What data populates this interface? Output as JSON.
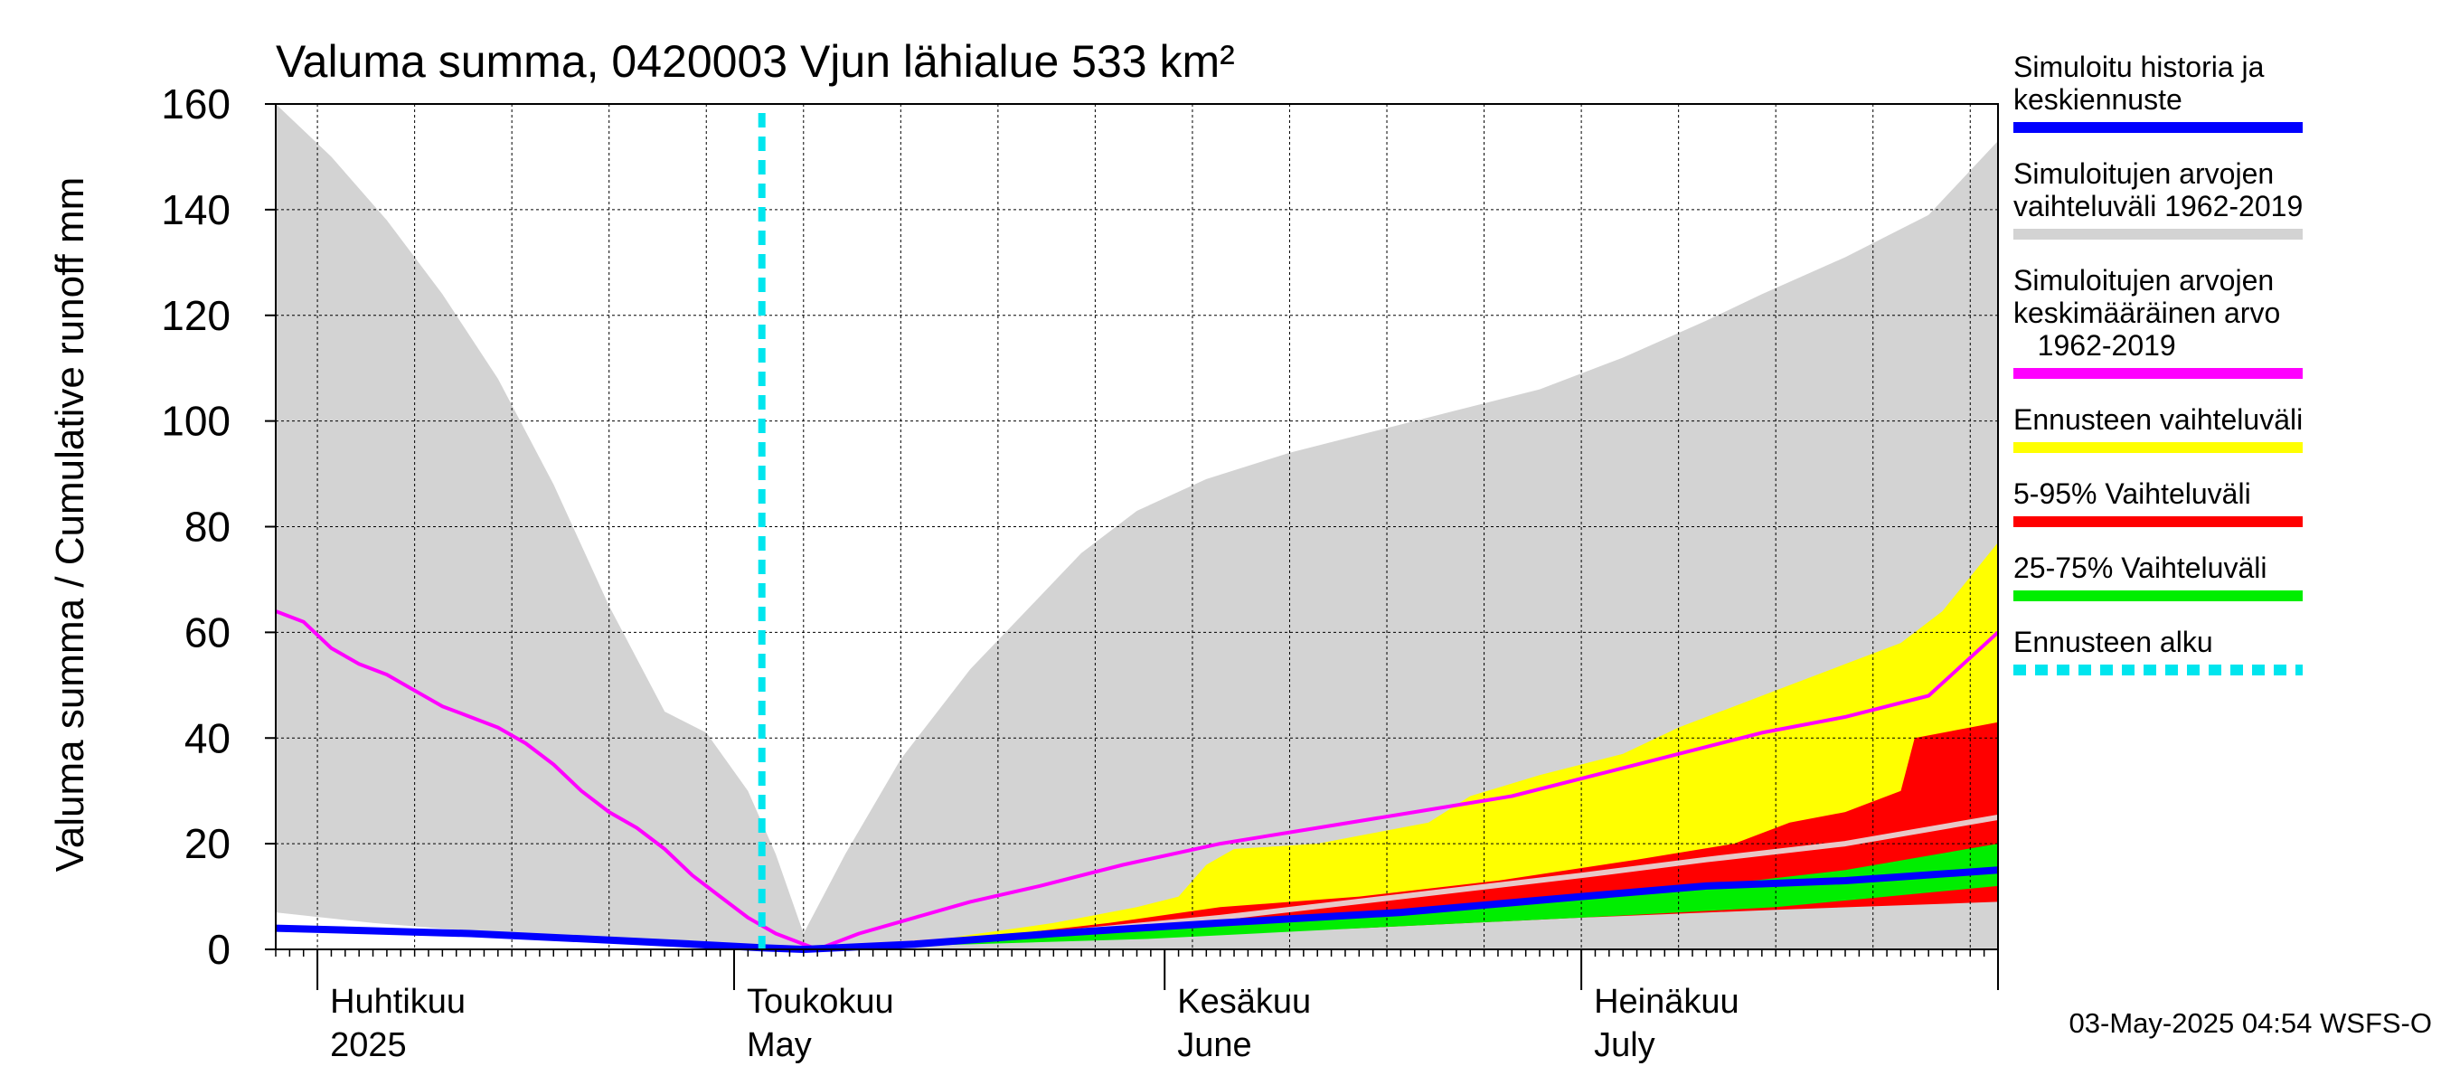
{
  "chart_data": {
    "type": "area",
    "title": "Valuma summa, 0420003 Vjun lähialue 533 km²",
    "ylabel": "Valuma summa / Cumulative runoff    mm",
    "ylim": [
      0,
      160
    ],
    "yticks": [
      0,
      20,
      40,
      60,
      80,
      100,
      120,
      140,
      160
    ],
    "x_range": [
      "2025-03-29",
      "2025-07-31"
    ],
    "month_labels": [
      {
        "fi": "Huhtikuu",
        "en": "2025",
        "date": "2025-04-01"
      },
      {
        "fi": "Toukokuu",
        "en": "May",
        "date": "2025-05-01"
      },
      {
        "fi": "Kesäkuu",
        "en": "June",
        "date": "2025-06-01"
      },
      {
        "fi": "Heinäkuu",
        "en": "July",
        "date": "2025-07-01"
      }
    ],
    "forecast_start": "2025-05-03",
    "grid": true,
    "legend_position": "right",
    "timestamp": "03-May-2025 04:54 WSFS-O",
    "legend": [
      {
        "key": "history",
        "label_lines": [
          "Simuloitu historia ja",
          "keskiennuste"
        ],
        "color": "#0000ff",
        "style": "line"
      },
      {
        "key": "range",
        "label_lines": [
          "Simuloitujen arvojen",
          "vaihteluväli 1962-2019"
        ],
        "color": "#d3d3d3",
        "style": "line"
      },
      {
        "key": "mean",
        "label_lines": [
          "Simuloitujen arvojen",
          "keskimääräinen arvo",
          "   1962-2019"
        ],
        "color": "#ff00ff",
        "style": "line"
      },
      {
        "key": "forecast_range",
        "label_lines": [
          "Ennusteen vaihteluväli"
        ],
        "color": "#ffff00",
        "style": "line"
      },
      {
        "key": "p5_95",
        "label_lines": [
          "5-95% Vaihteluväli"
        ],
        "color": "#ff0000",
        "style": "line"
      },
      {
        "key": "p25_75",
        "label_lines": [
          "25-75% Vaihteluväli"
        ],
        "color": "#00ee00",
        "style": "line"
      },
      {
        "key": "forecast_start",
        "label_lines": [
          "Ennusteen alku"
        ],
        "color": "#00e5ee",
        "style": "dashed"
      }
    ],
    "series": {
      "sim_range_upper": [
        [
          "2025-03-29",
          160
        ],
        [
          "2025-04-02",
          150
        ],
        [
          "2025-04-06",
          138
        ],
        [
          "2025-04-10",
          124
        ],
        [
          "2025-04-14",
          108
        ],
        [
          "2025-04-18",
          88
        ],
        [
          "2025-04-22",
          65
        ],
        [
          "2025-04-26",
          45
        ],
        [
          "2025-04-29",
          41
        ],
        [
          "2025-05-02",
          30
        ],
        [
          "2025-05-04",
          18
        ],
        [
          "2025-05-06",
          3
        ],
        [
          "2025-05-09",
          18
        ],
        [
          "2025-05-13",
          36
        ],
        [
          "2025-05-18",
          53
        ],
        [
          "2025-05-22",
          64
        ],
        [
          "2025-05-26",
          75
        ],
        [
          "2025-05-30",
          83
        ],
        [
          "2025-06-04",
          89
        ],
        [
          "2025-06-10",
          94
        ],
        [
          "2025-06-16",
          98
        ],
        [
          "2025-06-22",
          102
        ],
        [
          "2025-06-28",
          106
        ],
        [
          "2025-07-04",
          112
        ],
        [
          "2025-07-10",
          119
        ],
        [
          "2025-07-14",
          124
        ],
        [
          "2025-07-20",
          131
        ],
        [
          "2025-07-26",
          139
        ],
        [
          "2025-07-31",
          153
        ]
      ],
      "sim_range_lower": [
        [
          "2025-03-29",
          7
        ],
        [
          "2025-04-05",
          5
        ],
        [
          "2025-04-12",
          3.5
        ],
        [
          "2025-04-20",
          2.5
        ],
        [
          "2025-04-28",
          1.5
        ],
        [
          "2025-05-03",
          0.5
        ],
        [
          "2025-05-06",
          0
        ],
        [
          "2025-05-31",
          0
        ],
        [
          "2025-07-31",
          0
        ]
      ],
      "mean": [
        [
          "2025-03-29",
          64
        ],
        [
          "2025-03-31",
          62
        ],
        [
          "2025-04-02",
          57
        ],
        [
          "2025-04-04",
          54
        ],
        [
          "2025-04-06",
          52
        ],
        [
          "2025-04-08",
          49
        ],
        [
          "2025-04-10",
          46
        ],
        [
          "2025-04-12",
          44
        ],
        [
          "2025-04-14",
          42
        ],
        [
          "2025-04-16",
          39
        ],
        [
          "2025-04-18",
          35
        ],
        [
          "2025-04-20",
          30
        ],
        [
          "2025-04-22",
          26
        ],
        [
          "2025-04-24",
          23
        ],
        [
          "2025-04-26",
          19
        ],
        [
          "2025-04-28",
          14
        ],
        [
          "2025-04-30",
          10
        ],
        [
          "2025-05-02",
          6
        ],
        [
          "2025-05-04",
          3
        ],
        [
          "2025-05-06",
          1
        ],
        [
          "2025-05-07",
          0
        ],
        [
          "2025-05-10",
          3
        ],
        [
          "2025-05-14",
          6
        ],
        [
          "2025-05-18",
          9
        ],
        [
          "2025-05-23",
          12
        ],
        [
          "2025-05-29",
          16
        ],
        [
          "2025-06-05",
          20
        ],
        [
          "2025-06-12",
          23
        ],
        [
          "2025-06-19",
          26
        ],
        [
          "2025-06-26",
          29
        ],
        [
          "2025-07-02",
          33
        ],
        [
          "2025-07-08",
          37
        ],
        [
          "2025-07-14",
          41
        ],
        [
          "2025-07-20",
          44
        ],
        [
          "2025-07-26",
          48
        ],
        [
          "2025-07-31",
          60
        ]
      ],
      "history_median": [
        [
          "2025-03-29",
          4
        ],
        [
          "2025-04-05",
          3.5
        ],
        [
          "2025-04-12",
          3
        ],
        [
          "2025-04-20",
          2
        ],
        [
          "2025-04-28",
          1
        ],
        [
          "2025-05-03",
          0.3
        ],
        [
          "2025-05-06",
          0
        ],
        [
          "2025-05-14",
          1
        ],
        [
          "2025-05-24",
          3
        ],
        [
          "2025-06-05",
          5
        ],
        [
          "2025-06-18",
          7
        ],
        [
          "2025-07-01",
          10
        ],
        [
          "2025-07-10",
          12
        ],
        [
          "2025-07-20",
          13
        ],
        [
          "2025-07-31",
          15
        ]
      ],
      "forecast_max": [
        [
          "2025-05-06",
          0
        ],
        [
          "2025-05-16",
          2
        ],
        [
          "2025-05-24",
          5
        ],
        [
          "2025-05-30",
          8
        ],
        [
          "2025-06-02",
          10
        ],
        [
          "2025-06-04",
          16
        ],
        [
          "2025-06-06",
          19
        ],
        [
          "2025-06-12",
          20
        ],
        [
          "2025-06-16",
          22
        ],
        [
          "2025-06-20",
          24
        ],
        [
          "2025-06-23",
          29
        ],
        [
          "2025-06-28",
          33
        ],
        [
          "2025-07-04",
          37
        ],
        [
          "2025-07-08",
          42
        ],
        [
          "2025-07-12",
          46
        ],
        [
          "2025-07-16",
          50
        ],
        [
          "2025-07-20",
          54
        ],
        [
          "2025-07-24",
          58
        ],
        [
          "2025-07-27",
          64
        ],
        [
          "2025-07-31",
          77
        ]
      ],
      "forecast_min": [
        [
          "2025-05-06",
          0
        ],
        [
          "2025-05-31",
          3
        ],
        [
          "2025-06-15",
          5
        ],
        [
          "2025-07-01",
          7
        ],
        [
          "2025-07-15",
          8
        ],
        [
          "2025-07-31",
          10
        ]
      ],
      "p95": [
        [
          "2025-05-06",
          0
        ],
        [
          "2025-05-18",
          2
        ],
        [
          "2025-05-28",
          5
        ],
        [
          "2025-06-05",
          8
        ],
        [
          "2025-06-15",
          10
        ],
        [
          "2025-06-25",
          13
        ],
        [
          "2025-07-05",
          17
        ],
        [
          "2025-07-12",
          20
        ],
        [
          "2025-07-16",
          24
        ],
        [
          "2025-07-20",
          26
        ],
        [
          "2025-07-24",
          30
        ],
        [
          "2025-07-25",
          40
        ],
        [
          "2025-07-31",
          43
        ]
      ],
      "p5": [
        [
          "2025-05-06",
          0
        ],
        [
          "2025-05-31",
          2.5
        ],
        [
          "2025-06-15",
          4
        ],
        [
          "2025-07-01",
          6
        ],
        [
          "2025-07-15",
          7.5
        ],
        [
          "2025-07-31",
          9
        ]
      ],
      "p75": [
        [
          "2025-05-06",
          0
        ],
        [
          "2025-05-20",
          2
        ],
        [
          "2025-06-01",
          4
        ],
        [
          "2025-06-14",
          6
        ],
        [
          "2025-06-28",
          9
        ],
        [
          "2025-07-10",
          12
        ],
        [
          "2025-07-20",
          15
        ],
        [
          "2025-07-31",
          20
        ]
      ],
      "p25": [
        [
          "2025-05-06",
          0
        ],
        [
          "2025-05-31",
          2
        ],
        [
          "2025-06-15",
          4
        ],
        [
          "2025-07-01",
          6
        ],
        [
          "2025-07-15",
          8
        ],
        [
          "2025-07-31",
          12
        ]
      ],
      "forecast_mean": [
        [
          "2025-05-06",
          0
        ],
        [
          "2025-05-24",
          3
        ],
        [
          "2025-06-05",
          6
        ],
        [
          "2025-06-18",
          10
        ],
        [
          "2025-07-01",
          14
        ],
        [
          "2025-07-10",
          17
        ],
        [
          "2025-07-20",
          20
        ],
        [
          "2025-07-31",
          25
        ]
      ]
    }
  }
}
